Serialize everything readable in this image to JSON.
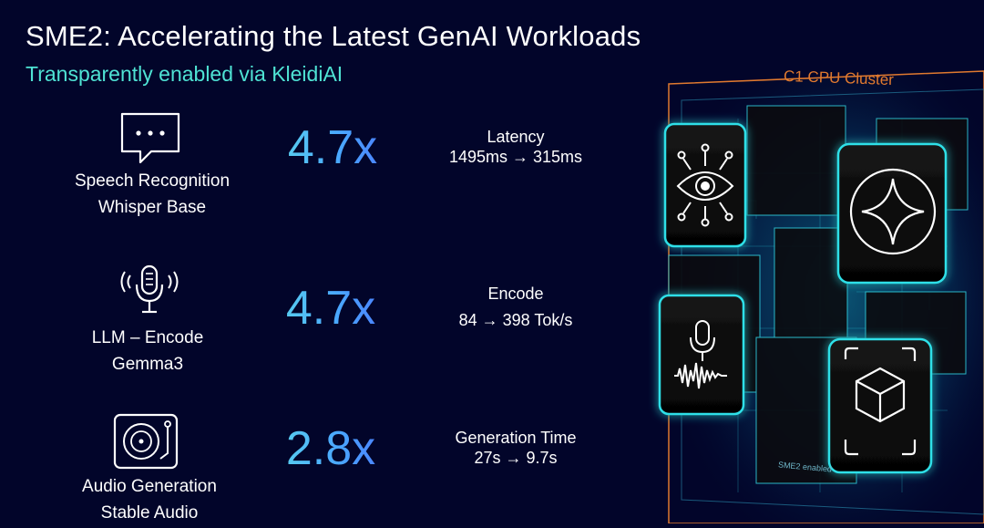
{
  "title": "SME2: Accelerating the Latest GenAI Workloads",
  "subtitle": "Transparently enabled via KleidiAI",
  "rows": [
    {
      "icon": "chat-bubble-icon",
      "name": "Speech Recognition",
      "model": "Whisper Base",
      "speedup": "4.7x",
      "metric_label": "Latency",
      "metric_value": "1495ms → 315ms"
    },
    {
      "icon": "microphone-icon",
      "name": "LLM – Encode",
      "model": "Gemma3",
      "speedup": "4.7x",
      "metric_label": "Encode",
      "metric_value": "84 → 398 Tok/s"
    },
    {
      "icon": "turntable-icon",
      "name": "Audio Generation",
      "model": "Stable Audio",
      "speedup": "2.8x",
      "metric_label": "Generation Time",
      "metric_value": "27s → 9.7s"
    }
  ],
  "cluster": {
    "title": "C1 CPU Cluster",
    "footer": "SME2 enabled",
    "tiles": [
      "eye-network-icon",
      "sparkle-icon",
      "microphone-waveform-icon",
      "cube-scan-icon"
    ]
  },
  "colors": {
    "background": "#02052a",
    "accent_teal": "#4fe3d4",
    "accent_blue": "#4a7dff",
    "cluster_orange": "#e0792f",
    "tile_glow": "#2fe0e8"
  }
}
